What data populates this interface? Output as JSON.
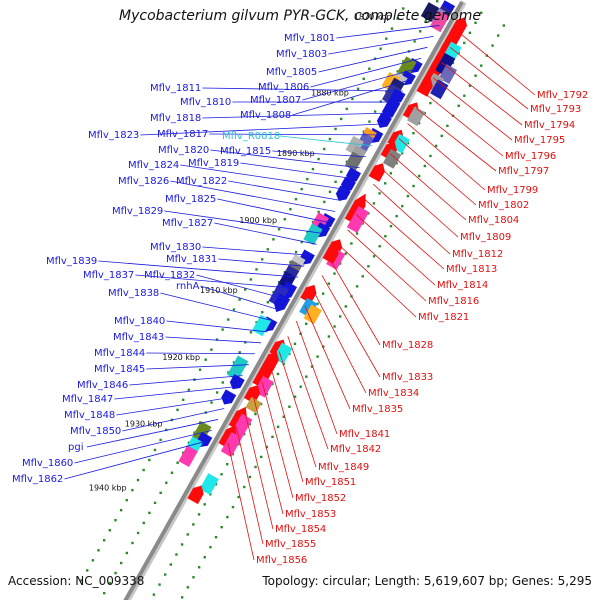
{
  "title": "Mycobacterium gilvum PYR-GCK, complete genome",
  "footer": {
    "accession": "Accession: NC_009338",
    "topology": "Topology: circular; Length: 5,619,607 bp; Genes: 5,295"
  },
  "colors": {
    "left_labels": "#1a1ae0",
    "right_labels": "#e01010",
    "rna_label": "#22c4d8",
    "backbone": "#8a8a8a",
    "ticks": "#2a8a2a"
  },
  "scale_marks": [
    "1870 kbp",
    "1880 kbp",
    "1890 kbp",
    "1900 kbp",
    "1910 kbp",
    "1920 kbp",
    "1930 kbp",
    "1940 kbp"
  ],
  "labels_left": [
    "Mflv_1801",
    "Mflv_1803",
    "Mflv_1805",
    "Mflv_1806",
    "Mflv_1807",
    "Mflv_1808",
    "Mflv_1811",
    "Mflv_1810",
    "Mflv_1818",
    "Mflv_1823",
    "Mflv_1817",
    "Mflv_R0018",
    "Mflv_1815",
    "Mflv_1820",
    "Mflv_1819",
    "Mflv_1824",
    "Mflv_1822",
    "Mflv_1826",
    "Mflv_1825",
    "Mflv_1829",
    "Mflv_1827",
    "Mflv_1830",
    "Mflv_1831",
    "Mflv_1839",
    "Mflv_1837",
    "Mflv_1832",
    "rnhA",
    "Mflv_1838",
    "Mflv_1840",
    "Mflv_1843",
    "Mflv_1844",
    "Mflv_1845",
    "Mflv_1846",
    "Mflv_1847",
    "Mflv_1848",
    "Mflv_1850",
    "pgi",
    "Mflv_1860",
    "Mflv_1862"
  ],
  "labels_right": [
    "Mflv_1792",
    "Mflv_1793",
    "Mflv_1794",
    "Mflv_1795",
    "Mflv_1796",
    "Mflv_1797",
    "Mflv_1799",
    "Mflv_1802",
    "Mflv_1804",
    "Mflv_1809",
    "Mflv_1812",
    "Mflv_1813",
    "Mflv_1814",
    "Mflv_1816",
    "Mflv_1821",
    "Mflv_1828",
    "Mflv_1833",
    "Mflv_1834",
    "Mflv_1835",
    "Mflv_1841",
    "Mflv_1842",
    "Mflv_1849",
    "Mflv_1851",
    "Mflv_1852",
    "Mflv_1853",
    "Mflv_1854",
    "Mflv_1855",
    "Mflv_1856"
  ],
  "features": [
    {
      "t": 0.02,
      "side": "fwd",
      "color": "#1414d8",
      "shape": "arrow",
      "len": 7
    },
    {
      "t": 0.03,
      "side": "fwd",
      "color": "#2a2a90",
      "shape": "box",
      "len": 8
    },
    {
      "t": 0.035,
      "side": "fwd2",
      "color": "#8888c8",
      "shape": "box",
      "len": 8
    },
    {
      "t": 0.035,
      "side": "fwd3",
      "color": "#1a1a60",
      "shape": "box",
      "len": 8
    },
    {
      "t": 0.04,
      "side": "fwd",
      "color": "#f04aa0",
      "shape": "box",
      "len": 9
    },
    {
      "t": 0.03,
      "side": "rev",
      "color": "#ff0a0a",
      "shape": "arrow",
      "len": 9
    },
    {
      "t": 0.045,
      "side": "rev",
      "color": "#ff0a0a",
      "shape": "arrow",
      "len": 9
    },
    {
      "t": 0.06,
      "side": "rev",
      "color": "#ff0a0a",
      "shape": "arrow",
      "len": 9
    },
    {
      "t": 0.075,
      "side": "rev",
      "color": "#ff0a0a",
      "shape": "box",
      "len": 9
    },
    {
      "t": 0.07,
      "side": "rev2",
      "color": "#20e8e8",
      "shape": "box",
      "len": 9
    },
    {
      "t": 0.09,
      "side": "rev",
      "color": "#ff0a0a",
      "shape": "arrow",
      "len": 9
    },
    {
      "t": 0.1,
      "side": "rev",
      "color": "#ff0a0a",
      "shape": "arrow",
      "len": 9
    },
    {
      "t": 0.09,
      "side": "rev2",
      "color": "#10108a",
      "shape": "box",
      "len": 10
    },
    {
      "t": 0.1,
      "side": "rev3",
      "color": "#6a6ab8",
      "shape": "box",
      "len": 8
    },
    {
      "t": 0.115,
      "side": "rev",
      "color": "#ff0a0a",
      "shape": "arrow",
      "len": 9
    },
    {
      "t": 0.12,
      "side": "rev2",
      "color": "#a0a0a0",
      "shape": "box",
      "len": 8
    },
    {
      "t": 0.13,
      "side": "rev",
      "color": "#ff0a0a",
      "shape": "arrow",
      "len": 9
    },
    {
      "t": 0.125,
      "side": "rev3",
      "color": "#2222b0",
      "shape": "box",
      "len": 8
    },
    {
      "t": 0.115,
      "side": "fwd",
      "color": "#1414d8",
      "shape": "arrow",
      "len": 7
    },
    {
      "t": 0.12,
      "side": "fwd2",
      "color": "#6a8a20",
      "shape": "box",
      "len": 9
    },
    {
      "t": 0.135,
      "side": "fwd",
      "color": "#1414d8",
      "shape": "arrow",
      "len": 7
    },
    {
      "t": 0.145,
      "side": "fwd2",
      "color": "#c0c0c0",
      "shape": "box",
      "len": 8
    },
    {
      "t": 0.15,
      "side": "fwd3",
      "color": "#ffb020",
      "shape": "box",
      "len": 8
    },
    {
      "t": 0.155,
      "side": "fwd2",
      "color": "#202070",
      "shape": "box",
      "len": 9
    },
    {
      "t": 0.165,
      "side": "fwd2",
      "color": "#3434a0",
      "shape": "box",
      "len": 9
    },
    {
      "t": 0.165,
      "side": "fwd",
      "color": "#1414d8",
      "shape": "arrow",
      "len": 7
    },
    {
      "t": 0.17,
      "side": "rev",
      "color": "#ff0a0a",
      "shape": "arrow",
      "len": 9
    },
    {
      "t": 0.175,
      "side": "rev2",
      "color": "#a0a0a0",
      "shape": "box",
      "len": 8
    },
    {
      "t": 0.18,
      "side": "fwd",
      "color": "#1414d8",
      "shape": "arrow",
      "len": 7
    },
    {
      "t": 0.19,
      "side": "fwd",
      "color": "#1414d8",
      "shape": "arrow",
      "len": 7
    },
    {
      "t": 0.205,
      "side": "fwd",
      "color": "#1414d8",
      "shape": "arrow",
      "len": 7
    },
    {
      "t": 0.215,
      "side": "rev",
      "color": "#ff0a0a",
      "shape": "arrow",
      "len": 9
    },
    {
      "t": 0.22,
      "side": "rev2",
      "color": "#20e8e8",
      "shape": "box",
      "len": 8
    },
    {
      "t": 0.23,
      "side": "fwd",
      "color": "#1414d8",
      "shape": "arrow",
      "len": 7
    },
    {
      "t": 0.235,
      "side": "fwd2",
      "color": "#ff9a20",
      "shape": "box",
      "len": 8
    },
    {
      "t": 0.235,
      "side": "rev",
      "color": "#ff0a0a",
      "shape": "arrow",
      "len": 9
    },
    {
      "t": 0.245,
      "side": "rev2",
      "color": "#808080",
      "shape": "box",
      "len": 8
    },
    {
      "t": 0.245,
      "side": "fwd2",
      "color": "#6060c0",
      "shape": "box",
      "len": 9
    },
    {
      "t": 0.255,
      "side": "fwd3",
      "color": "#b0b0b0",
      "shape": "box",
      "len": 8
    },
    {
      "t": 0.265,
      "side": "fwd2",
      "color": "#a0a0a0",
      "shape": "box",
      "len": 8
    },
    {
      "t": 0.275,
      "side": "fwd2",
      "color": "#707070",
      "shape": "box",
      "len": 8
    },
    {
      "t": 0.27,
      "side": "rev",
      "color": "#ff0a0a",
      "shape": "arrow",
      "len": 9
    },
    {
      "t": 0.295,
      "side": "fwd",
      "color": "#1414d8",
      "shape": "arrow",
      "len": 7
    },
    {
      "t": 0.31,
      "side": "fwd",
      "color": "#1414d8",
      "shape": "arrow",
      "len": 7
    },
    {
      "t": 0.325,
      "side": "fwd",
      "color": "#1414d8",
      "shape": "arrow",
      "len": 7
    },
    {
      "t": 0.33,
      "side": "rev",
      "color": "#ff0a0a",
      "shape": "arrow",
      "len": 16
    },
    {
      "t": 0.345,
      "side": "rev2",
      "color": "#ff3ab0",
      "shape": "box",
      "len": 12
    },
    {
      "t": 0.37,
      "side": "fwd",
      "color": "#1414d8",
      "shape": "arrow",
      "len": 7
    },
    {
      "t": 0.375,
      "side": "fwd2",
      "color": "#ff3ab0",
      "shape": "box",
      "len": 8
    },
    {
      "t": 0.385,
      "side": "fwd",
      "color": "#1414d8",
      "shape": "arrow",
      "len": 7
    },
    {
      "t": 0.395,
      "side": "fwd2",
      "color": "#20c8c8",
      "shape": "box",
      "len": 9
    },
    {
      "t": 0.395,
      "side": "rev",
      "color": "#ff0a0a",
      "shape": "arrow",
      "len": 9
    },
    {
      "t": 0.41,
      "side": "rev2",
      "color": "#ff3ab0",
      "shape": "box",
      "len": 9
    },
    {
      "t": 0.405,
      "side": "rev",
      "color": "#ff0a0a",
      "shape": "arrow",
      "len": 9
    },
    {
      "t": 0.43,
      "side": "fwd",
      "color": "#1414d8",
      "shape": "arrow",
      "len": 7
    },
    {
      "t": 0.445,
      "side": "fwd2",
      "color": "#c8c8c8",
      "shape": "box",
      "len": 9
    },
    {
      "t": 0.455,
      "side": "fwd2",
      "color": "#707070",
      "shape": "box",
      "len": 9
    },
    {
      "t": 0.465,
      "side": "fwd2",
      "color": "#2a2aa0",
      "shape": "box",
      "len": 10
    },
    {
      "t": 0.475,
      "side": "fwd2",
      "color": "#10108a",
      "shape": "box",
      "len": 10
    },
    {
      "t": 0.485,
      "side": "fwd",
      "color": "#1414d8",
      "shape": "arrow",
      "len": 9
    },
    {
      "t": 0.495,
      "side": "fwd2",
      "color": "#2a2ac0",
      "shape": "box",
      "len": 10
    },
    {
      "t": 0.505,
      "side": "fwd",
      "color": "#1414d8",
      "shape": "arrow",
      "len": 9
    },
    {
      "t": 0.47,
      "side": "rev",
      "color": "#ff0a0a",
      "shape": "arrow",
      "len": 9
    },
    {
      "t": 0.49,
      "side": "rev2",
      "color": "#20a0e8",
      "shape": "box",
      "len": 8
    },
    {
      "t": 0.495,
      "side": "rev3",
      "color": "#ffb020",
      "shape": "box",
      "len": 8
    },
    {
      "t": 0.54,
      "side": "fwd",
      "color": "#1414d8",
      "shape": "arrow",
      "len": 7
    },
    {
      "t": 0.545,
      "side": "fwd2",
      "color": "#20e8e8",
      "shape": "box",
      "len": 9
    },
    {
      "t": 0.56,
      "side": "rev",
      "color": "#ff0a0a",
      "shape": "arrow",
      "len": 9
    },
    {
      "t": 0.565,
      "side": "rev2",
      "color": "#20e8e8",
      "shape": "box",
      "len": 9
    },
    {
      "t": 0.58,
      "side": "rev",
      "color": "#ff0a0a",
      "shape": "arrow",
      "len": 9
    },
    {
      "t": 0.59,
      "side": "rev",
      "color": "#ff0a0a",
      "shape": "arrow",
      "len": 9
    },
    {
      "t": 0.6,
      "side": "rev",
      "color": "#ff0a0a",
      "shape": "arrow",
      "len": 9
    },
    {
      "t": 0.61,
      "side": "rev",
      "color": "#ff0a0a",
      "shape": "arrow",
      "len": 9
    },
    {
      "t": 0.615,
      "side": "fwd2",
      "color": "#20c8c8",
      "shape": "box",
      "len": 11
    },
    {
      "t": 0.62,
      "side": "rev2",
      "color": "#ff3ab0",
      "shape": "box",
      "len": 9
    },
    {
      "t": 0.635,
      "side": "rev",
      "color": "#ff0a0a",
      "shape": "arrow",
      "len": 9
    },
    {
      "t": 0.635,
      "side": "fwd",
      "color": "#1414d8",
      "shape": "arrow",
      "len": 7
    },
    {
      "t": 0.65,
      "side": "rev2",
      "color": "#c8a040",
      "shape": "box",
      "len": 6
    },
    {
      "t": 0.66,
      "side": "fwd",
      "color": "#1414d8",
      "shape": "arrow",
      "len": 7
    },
    {
      "t": 0.675,
      "side": "rev",
      "color": "#ff0a0a",
      "shape": "arrow",
      "len": 12
    },
    {
      "t": 0.685,
      "side": "rev2",
      "color": "#ff3ab0",
      "shape": "box",
      "len": 11
    },
    {
      "t": 0.705,
      "side": "rev",
      "color": "#ff0a0a",
      "shape": "arrow",
      "len": 12
    },
    {
      "t": 0.715,
      "side": "rev2",
      "color": "#ff3ab0",
      "shape": "box",
      "len": 11
    },
    {
      "t": 0.72,
      "side": "fwd2",
      "color": "#6a8a20",
      "shape": "box",
      "len": 9
    },
    {
      "t": 0.73,
      "side": "fwd",
      "color": "#1414d8",
      "shape": "arrow",
      "len": 7
    },
    {
      "t": 0.745,
      "side": "fwd2",
      "color": "#20e8e8",
      "shape": "box",
      "len": 9
    },
    {
      "t": 0.76,
      "side": "fwd2",
      "color": "#ff3ab0",
      "shape": "box",
      "len": 9
    },
    {
      "t": 0.78,
      "side": "rev2",
      "color": "#20e8e8",
      "shape": "box",
      "len": 9
    },
    {
      "t": 0.8,
      "side": "rev",
      "color": "#ff0a0a",
      "shape": "arrow",
      "len": 9
    }
  ]
}
